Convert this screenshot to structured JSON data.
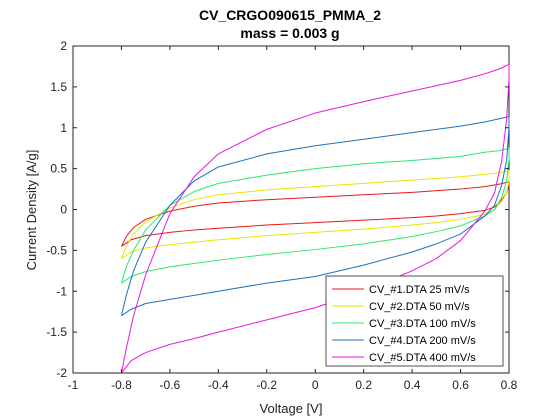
{
  "chart_data": {
    "type": "line",
    "title": "CV_CRGO090615_PMMA_2",
    "subtitle": "mass = 0.003 g",
    "xlabel": "Voltage [V]",
    "ylabel": "Current Density [A/g]",
    "xlim": [
      -1,
      0.8
    ],
    "ylim": [
      -2,
      2
    ],
    "xticks": [
      -1,
      -0.8,
      -0.6,
      -0.4,
      -0.2,
      0,
      0.2,
      0.4,
      0.6,
      0.8
    ],
    "xtick_labels": [
      "-1",
      "-0.8",
      "-0.6",
      "-0.4",
      "-0.2",
      "0",
      "0.2",
      "0.4",
      "0.6",
      "0.8"
    ],
    "yticks": [
      -2,
      -1.5,
      -1,
      -0.5,
      0,
      0.5,
      1,
      1.5,
      2
    ],
    "ytick_labels": [
      "-2",
      "-1.5",
      "-1",
      "-0.5",
      "0",
      "0.5",
      "1",
      "1.5",
      "2"
    ],
    "grid": false,
    "legend_position": "bottom-right",
    "series": [
      {
        "name": "CV_#1.DTA 25 mV/s",
        "color": "#e41a1c",
        "x": [
          -0.8,
          -0.78,
          -0.75,
          -0.7,
          -0.6,
          -0.5,
          -0.4,
          -0.2,
          0,
          0.2,
          0.4,
          0.6,
          0.7,
          0.76,
          0.79,
          0.8,
          0.8,
          0.79,
          0.77,
          0.74,
          0.7,
          0.6,
          0.5,
          0.4,
          0.2,
          0,
          -0.2,
          -0.4,
          -0.5,
          -0.6,
          -0.7,
          -0.76,
          -0.8
        ],
        "y": [
          -0.45,
          -0.33,
          -0.22,
          -0.12,
          -0.02,
          0.04,
          0.08,
          0.12,
          0.15,
          0.18,
          0.21,
          0.25,
          0.28,
          0.31,
          0.33,
          0.34,
          0.3,
          0.2,
          0.12,
          0.03,
          -0.01,
          -0.05,
          -0.08,
          -0.1,
          -0.13,
          -0.16,
          -0.19,
          -0.23,
          -0.25,
          -0.28,
          -0.32,
          -0.37,
          -0.45
        ]
      },
      {
        "name": "CV_#2.DTA 50 mV/s",
        "color": "#e6e600",
        "x": [
          -0.8,
          -0.78,
          -0.75,
          -0.7,
          -0.6,
          -0.5,
          -0.4,
          -0.2,
          0,
          0.2,
          0.4,
          0.6,
          0.7,
          0.76,
          0.79,
          0.8,
          0.8,
          0.79,
          0.77,
          0.74,
          0.7,
          0.6,
          0.5,
          0.4,
          0.2,
          0,
          -0.2,
          -0.4,
          -0.5,
          -0.6,
          -0.7,
          -0.76,
          -0.8
        ],
        "y": [
          -0.6,
          -0.45,
          -0.3,
          -0.15,
          0.02,
          0.12,
          0.18,
          0.24,
          0.28,
          0.32,
          0.36,
          0.4,
          0.43,
          0.45,
          0.47,
          0.48,
          0.35,
          0.2,
          0.1,
          0.0,
          -0.06,
          -0.12,
          -0.16,
          -0.19,
          -0.24,
          -0.28,
          -0.32,
          -0.37,
          -0.4,
          -0.43,
          -0.47,
          -0.52,
          -0.6
        ]
      },
      {
        "name": "CV_#3.DTA 100 mV/s",
        "color": "#2ee86e",
        "x": [
          -0.8,
          -0.78,
          -0.75,
          -0.7,
          -0.6,
          -0.5,
          -0.4,
          -0.2,
          0,
          0.2,
          0.4,
          0.6,
          0.7,
          0.76,
          0.79,
          0.8,
          0.8,
          0.79,
          0.77,
          0.74,
          0.7,
          0.6,
          0.5,
          0.4,
          0.2,
          0,
          -0.2,
          -0.4,
          -0.5,
          -0.6,
          -0.7,
          -0.76,
          -0.8
        ],
        "y": [
          -0.9,
          -0.7,
          -0.5,
          -0.25,
          0.05,
          0.22,
          0.32,
          0.42,
          0.5,
          0.56,
          0.6,
          0.65,
          0.7,
          0.72,
          0.74,
          0.75,
          0.62,
          0.35,
          0.15,
          0.0,
          -0.08,
          -0.2,
          -0.27,
          -0.33,
          -0.42,
          -0.49,
          -0.55,
          -0.62,
          -0.66,
          -0.7,
          -0.76,
          -0.82,
          -0.9
        ]
      },
      {
        "name": "CV_#4.DTA 200 mV/s",
        "color": "#1c72bd",
        "x": [
          -0.8,
          -0.78,
          -0.75,
          -0.7,
          -0.6,
          -0.5,
          -0.4,
          -0.2,
          0,
          0.2,
          0.4,
          0.6,
          0.7,
          0.76,
          0.79,
          0.8,
          0.8,
          0.79,
          0.77,
          0.74,
          0.7,
          0.6,
          0.5,
          0.4,
          0.2,
          0,
          -0.2,
          -0.4,
          -0.5,
          -0.6,
          -0.7,
          -0.76,
          -0.8
        ],
        "y": [
          -1.3,
          -1.05,
          -0.75,
          -0.4,
          0.05,
          0.35,
          0.52,
          0.68,
          0.78,
          0.86,
          0.94,
          1.02,
          1.07,
          1.11,
          1.13,
          1.14,
          1.0,
          0.6,
          0.3,
          0.05,
          -0.08,
          -0.3,
          -0.42,
          -0.52,
          -0.68,
          -0.82,
          -0.9,
          -1.0,
          -1.05,
          -1.1,
          -1.15,
          -1.22,
          -1.3
        ]
      },
      {
        "name": "CV_#5.DTA 400 mV/s",
        "color": "#e619e6",
        "x": [
          -0.8,
          -0.78,
          -0.75,
          -0.7,
          -0.6,
          -0.5,
          -0.4,
          -0.2,
          0,
          0.2,
          0.4,
          0.6,
          0.7,
          0.76,
          0.79,
          0.8,
          0.8,
          0.79,
          0.77,
          0.74,
          0.7,
          0.6,
          0.5,
          0.4,
          0.2,
          0,
          -0.2,
          -0.4,
          -0.5,
          -0.6,
          -0.7,
          -0.76,
          -0.8
        ],
        "y": [
          -2.0,
          -1.7,
          -1.3,
          -0.8,
          -0.05,
          0.4,
          0.68,
          0.98,
          1.18,
          1.32,
          1.45,
          1.58,
          1.66,
          1.72,
          1.76,
          1.78,
          1.6,
          1.1,
          0.6,
          0.2,
          -0.02,
          -0.38,
          -0.6,
          -0.75,
          -1.0,
          -1.2,
          -1.35,
          -1.5,
          -1.58,
          -1.65,
          -1.75,
          -1.85,
          -2.0
        ]
      }
    ]
  }
}
